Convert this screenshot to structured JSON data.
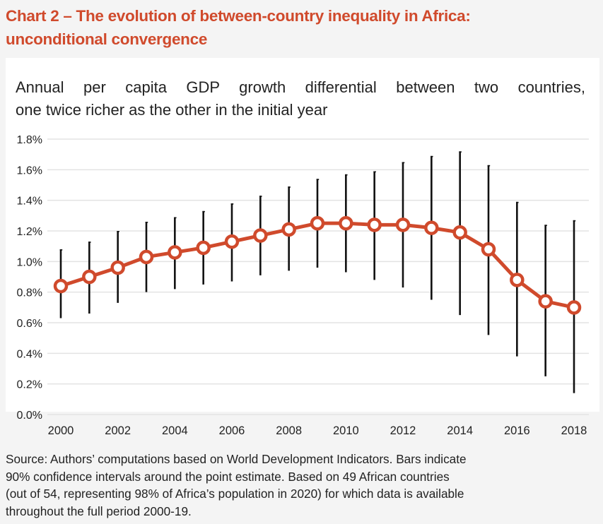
{
  "header": {
    "title_line1": "Chart 2 – The evolution of between-country inequality in Africa:",
    "title_line2": "unconditional convergence"
  },
  "chart_data": {
    "type": "line",
    "title": "Chart 2 – The evolution of between-country inequality in Africa: unconditional convergence",
    "subtitle_line1": "Annual per capita GDP growth differential between two countries,",
    "subtitle_line2": "one twice richer as the other in the initial year",
    "xlabel": "",
    "ylabel": "",
    "x": [
      2000,
      2001,
      2002,
      2003,
      2004,
      2005,
      2006,
      2007,
      2008,
      2009,
      2010,
      2011,
      2012,
      2013,
      2014,
      2015,
      2016,
      2017,
      2018
    ],
    "series": [
      {
        "name": "Point estimate",
        "color": "#d04a2c",
        "values": [
          0.84,
          0.9,
          0.96,
          1.03,
          1.06,
          1.09,
          1.13,
          1.17,
          1.21,
          1.25,
          1.25,
          1.24,
          1.24,
          1.22,
          1.19,
          1.08,
          0.88,
          0.74,
          0.7
        ],
        "ci_upper": [
          1.08,
          1.13,
          1.2,
          1.26,
          1.29,
          1.33,
          1.38,
          1.43,
          1.49,
          1.54,
          1.57,
          1.59,
          1.65,
          1.69,
          1.72,
          1.63,
          1.39,
          1.24,
          1.27
        ],
        "ci_lower": [
          0.63,
          0.66,
          0.73,
          0.8,
          0.82,
          0.85,
          0.87,
          0.91,
          0.94,
          0.96,
          0.93,
          0.88,
          0.83,
          0.75,
          0.65,
          0.52,
          0.38,
          0.25,
          0.14
        ]
      }
    ],
    "error_bar_color": "#111111",
    "ylim": [
      0,
      1.8
    ],
    "xlim": [
      2000,
      2018
    ],
    "yticks": [
      0.0,
      0.2,
      0.4,
      0.6,
      0.8,
      1.0,
      1.2,
      1.4,
      1.6,
      1.8
    ],
    "ytick_labels": [
      "0.0%",
      "0.2%",
      "0.4%",
      "0.6%",
      "0.8%",
      "1.0%",
      "1.2%",
      "1.4%",
      "1.6%",
      "1.8%"
    ],
    "xtick_labels": [
      "2000",
      "2002",
      "2004",
      "2006",
      "2008",
      "2010",
      "2012",
      "2014",
      "2016",
      "2018"
    ],
    "xticks": [
      2000,
      2002,
      2004,
      2006,
      2008,
      2010,
      2012,
      2014,
      2016,
      2018
    ],
    "grid": "horizontal",
    "legend": "none",
    "units": "percent"
  },
  "footer": {
    "source_line1": "Source: Authors’ computations based on World Development Indicators.  Bars indicate",
    "source_line2": "90% confidence intervals around the point estimate. Based on 49 African countries",
    "source_line3": "(out of 54, representing 98% of Africa’s population in 2020) for which data is available",
    "source_line4": "throughout the full period 2000-19."
  }
}
